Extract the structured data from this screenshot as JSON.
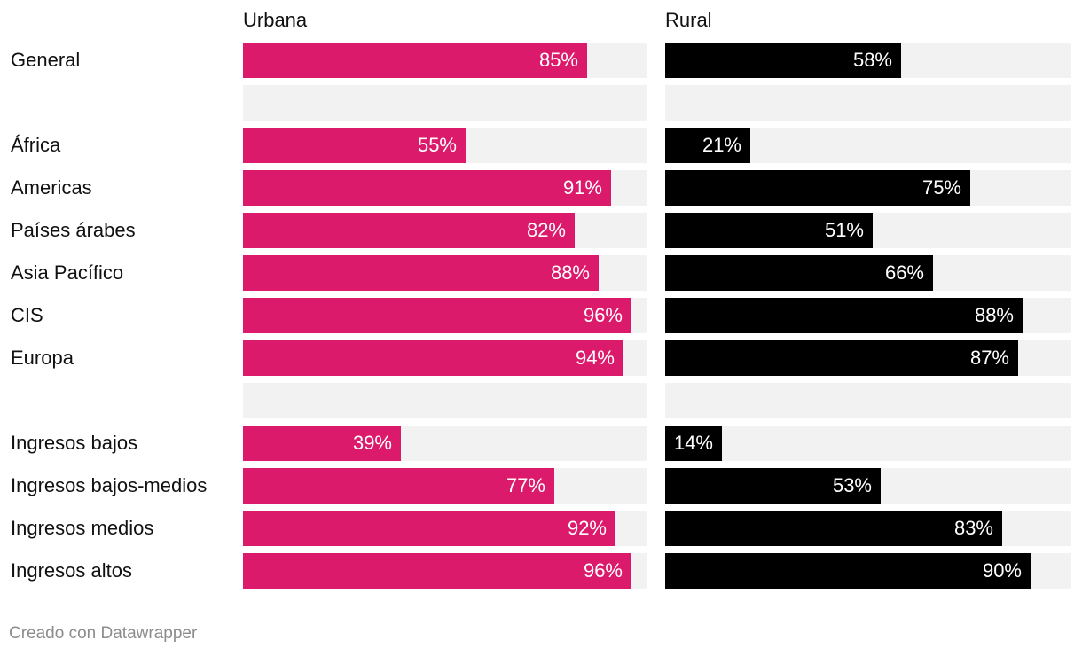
{
  "chart_data": {
    "type": "bar",
    "orientation": "horizontal",
    "series": [
      {
        "name": "Urbana",
        "color": "#dc1a6b",
        "values": [
          85,
          null,
          55,
          91,
          82,
          88,
          96,
          94,
          null,
          39,
          77,
          92,
          96
        ]
      },
      {
        "name": "Rural",
        "color": "#000000",
        "values": [
          58,
          null,
          21,
          75,
          51,
          66,
          88,
          87,
          null,
          14,
          53,
          83,
          90
        ]
      }
    ],
    "categories": [
      "General",
      "",
      "África",
      "Americas",
      "Países árabes",
      "Asia Pacífico",
      "CIS",
      "Europa",
      "",
      "Ingresos bajos",
      "Ingresos bajos-medios",
      "Ingresos medios",
      "Ingresos altos"
    ],
    "value_suffix": "%",
    "xlim": [
      0,
      100
    ],
    "track_color": "#f2f2f2"
  },
  "footer": "Creado con Datawrapper"
}
